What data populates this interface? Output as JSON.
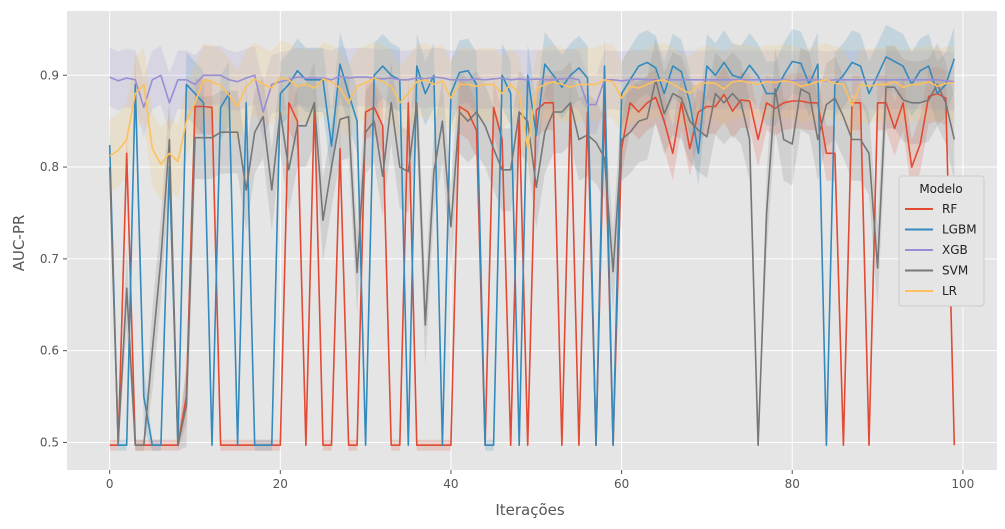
{
  "chart_data": {
    "type": "line",
    "xlabel": "Iterações",
    "ylabel": "AUC-PR",
    "xlim": [
      -5,
      104
    ],
    "ylim": [
      0.47,
      0.97
    ],
    "xticks": [
      0,
      20,
      40,
      60,
      80,
      100
    ],
    "yticks": [
      0.5,
      0.6,
      0.7,
      0.8,
      0.9
    ],
    "grid": true,
    "legend": {
      "title": "Modelo",
      "placement": "right"
    },
    "colors": {
      "plot_bg": "#e5e5e5",
      "grid": "#ffffff",
      "RF": "#e24a33",
      "LGBM": "#348abd",
      "XGB": "#988ed5",
      "SVM": "#777777",
      "LR": "#fbc15e"
    },
    "x": [
      0,
      1,
      2,
      3,
      4,
      5,
      6,
      7,
      8,
      9,
      10,
      11,
      12,
      13,
      14,
      15,
      16,
      17,
      18,
      19,
      20,
      21,
      22,
      23,
      24,
      25,
      26,
      27,
      28,
      29,
      30,
      31,
      32,
      33,
      34,
      35,
      36,
      37,
      38,
      39,
      40,
      41,
      42,
      43,
      44,
      45,
      46,
      47,
      48,
      49,
      50,
      51,
      52,
      53,
      54,
      55,
      56,
      57,
      58,
      59,
      60,
      61,
      62,
      63,
      64,
      65,
      66,
      67,
      68,
      69,
      70,
      71,
      72,
      73,
      74,
      75,
      76,
      77,
      78,
      79,
      80,
      81,
      82,
      83,
      84,
      85,
      86,
      87,
      88,
      89,
      90,
      91,
      92,
      93,
      94,
      95,
      96,
      97,
      98,
      99
    ],
    "series": [
      {
        "name": "RF",
        "values": [
          0.497,
          0.497,
          0.815,
          0.497,
          0.497,
          0.497,
          0.497,
          0.497,
          0.497,
          0.55,
          0.866,
          0.866,
          0.865,
          0.497,
          0.497,
          0.497,
          0.497,
          0.497,
          0.497,
          0.497,
          0.497,
          0.87,
          0.85,
          0.497,
          0.87,
          0.497,
          0.497,
          0.82,
          0.497,
          0.497,
          0.86,
          0.865,
          0.845,
          0.497,
          0.497,
          0.87,
          0.497,
          0.497,
          0.497,
          0.497,
          0.497,
          0.866,
          0.86,
          0.84,
          0.497,
          0.865,
          0.83,
          0.497,
          0.86,
          0.497,
          0.862,
          0.87,
          0.87,
          0.497,
          0.87,
          0.497,
          0.86,
          0.497,
          0.87,
          0.497,
          0.82,
          0.87,
          0.86,
          0.87,
          0.876,
          0.85,
          0.815,
          0.87,
          0.82,
          0.86,
          0.866,
          0.866,
          0.879,
          0.861,
          0.873,
          0.872,
          0.83,
          0.87,
          0.864,
          0.87,
          0.872,
          0.872,
          0.87,
          0.87,
          0.815,
          0.815,
          0.497,
          0.87,
          0.87,
          0.497,
          0.87,
          0.87,
          0.842,
          0.87,
          0.8,
          0.825,
          0.877,
          0.88,
          0.875,
          0.497
        ]
      },
      {
        "name": "LGBM",
        "values": [
          0.824,
          0.497,
          0.497,
          0.89,
          0.55,
          0.497,
          0.497,
          0.8,
          0.497,
          0.89,
          0.88,
          0.87,
          0.497,
          0.865,
          0.88,
          0.497,
          0.87,
          0.497,
          0.497,
          0.497,
          0.88,
          0.89,
          0.905,
          0.895,
          0.895,
          0.895,
          0.823,
          0.912,
          0.88,
          0.85,
          0.497,
          0.9,
          0.91,
          0.9,
          0.895,
          0.497,
          0.91,
          0.88,
          0.9,
          0.497,
          0.88,
          0.903,
          0.905,
          0.89,
          0.497,
          0.497,
          0.9,
          0.88,
          0.497,
          0.9,
          0.835,
          0.912,
          0.9,
          0.887,
          0.9,
          0.908,
          0.897,
          0.497,
          0.91,
          0.497,
          0.88,
          0.895,
          0.91,
          0.914,
          0.908,
          0.88,
          0.91,
          0.904,
          0.87,
          0.815,
          0.91,
          0.9,
          0.914,
          0.9,
          0.897,
          0.911,
          0.899,
          0.88,
          0.88,
          0.9,
          0.915,
          0.913,
          0.89,
          0.912,
          0.497,
          0.89,
          0.9,
          0.914,
          0.91,
          0.88,
          0.9,
          0.92,
          0.915,
          0.91,
          0.89,
          0.905,
          0.91,
          0.88,
          0.89,
          0.918
        ]
      },
      {
        "name": "XGB",
        "values": [
          0.898,
          0.894,
          0.897,
          0.895,
          0.865,
          0.895,
          0.9,
          0.87,
          0.895,
          0.895,
          0.89,
          0.9,
          0.9,
          0.9,
          0.895,
          0.893,
          0.897,
          0.9,
          0.86,
          0.89,
          0.893,
          0.895,
          0.898,
          0.897,
          0.897,
          0.897,
          0.895,
          0.899,
          0.897,
          0.898,
          0.898,
          0.897,
          0.896,
          0.897,
          0.895,
          0.895,
          0.897,
          0.896,
          0.898,
          0.897,
          0.895,
          0.895,
          0.895,
          0.896,
          0.895,
          0.896,
          0.897,
          0.895,
          0.896,
          0.895,
          0.896,
          0.895,
          0.895,
          0.896,
          0.897,
          0.895,
          0.868,
          0.868,
          0.895,
          0.895,
          0.894,
          0.895,
          0.896,
          0.895,
          0.895,
          0.895,
          0.895,
          0.895,
          0.895,
          0.895,
          0.895,
          0.895,
          0.895,
          0.895,
          0.895,
          0.895,
          0.895,
          0.895,
          0.895,
          0.895,
          0.894,
          0.895,
          0.895,
          0.895,
          0.894,
          0.895,
          0.895,
          0.895,
          0.895,
          0.895,
          0.895,
          0.895,
          0.895,
          0.895,
          0.895,
          0.895,
          0.895,
          0.895,
          0.894,
          0.893
        ]
      },
      {
        "name": "SVM",
        "values": [
          0.8,
          0.5,
          0.668,
          0.497,
          0.497,
          0.6,
          0.7,
          0.83,
          0.497,
          0.54,
          0.832,
          0.832,
          0.832,
          0.838,
          0.838,
          0.838,
          0.775,
          0.838,
          0.855,
          0.775,
          0.86,
          0.797,
          0.845,
          0.845,
          0.87,
          0.742,
          0.8,
          0.852,
          0.855,
          0.685,
          0.838,
          0.85,
          0.79,
          0.87,
          0.8,
          0.795,
          0.87,
          0.628,
          0.795,
          0.85,
          0.735,
          0.86,
          0.85,
          0.86,
          0.845,
          0.82,
          0.797,
          0.797,
          0.86,
          0.85,
          0.778,
          0.838,
          0.86,
          0.86,
          0.87,
          0.83,
          0.835,
          0.827,
          0.81,
          0.686,
          0.83,
          0.838,
          0.85,
          0.853,
          0.895,
          0.858,
          0.88,
          0.875,
          0.85,
          0.84,
          0.833,
          0.88,
          0.87,
          0.88,
          0.87,
          0.83,
          0.497,
          0.75,
          0.885,
          0.83,
          0.825,
          0.885,
          0.88,
          0.83,
          0.868,
          0.875,
          0.855,
          0.83,
          0.83,
          0.815,
          0.69,
          0.887,
          0.887,
          0.873,
          0.87,
          0.87,
          0.873,
          0.89,
          0.87,
          0.83
        ]
      },
      {
        "name": "LR",
        "values": [
          0.812,
          0.818,
          0.83,
          0.88,
          0.89,
          0.82,
          0.803,
          0.815,
          0.806,
          0.85,
          0.87,
          0.895,
          0.893,
          0.889,
          0.878,
          0.866,
          0.888,
          0.896,
          0.89,
          0.886,
          0.898,
          0.895,
          0.888,
          0.89,
          0.886,
          0.896,
          0.893,
          0.886,
          0.87,
          0.888,
          0.892,
          0.897,
          0.893,
          0.888,
          0.87,
          0.88,
          0.893,
          0.895,
          0.89,
          0.894,
          0.875,
          0.89,
          0.89,
          0.888,
          0.89,
          0.89,
          0.88,
          0.89,
          0.88,
          0.82,
          0.885,
          0.89,
          0.893,
          0.89,
          0.887,
          0.89,
          0.89,
          0.89,
          0.895,
          0.893,
          0.875,
          0.888,
          0.886,
          0.89,
          0.894,
          0.895,
          0.89,
          0.885,
          0.88,
          0.89,
          0.892,
          0.891,
          0.885,
          0.893,
          0.894,
          0.892,
          0.89,
          0.893,
          0.892,
          0.894,
          0.893,
          0.888,
          0.89,
          0.893,
          0.895,
          0.891,
          0.89,
          0.867,
          0.89,
          0.888,
          0.89,
          0.89,
          0.893,
          0.887,
          0.89,
          0.89,
          0.893,
          0.888,
          0.891,
          0.892
        ]
      }
    ]
  }
}
